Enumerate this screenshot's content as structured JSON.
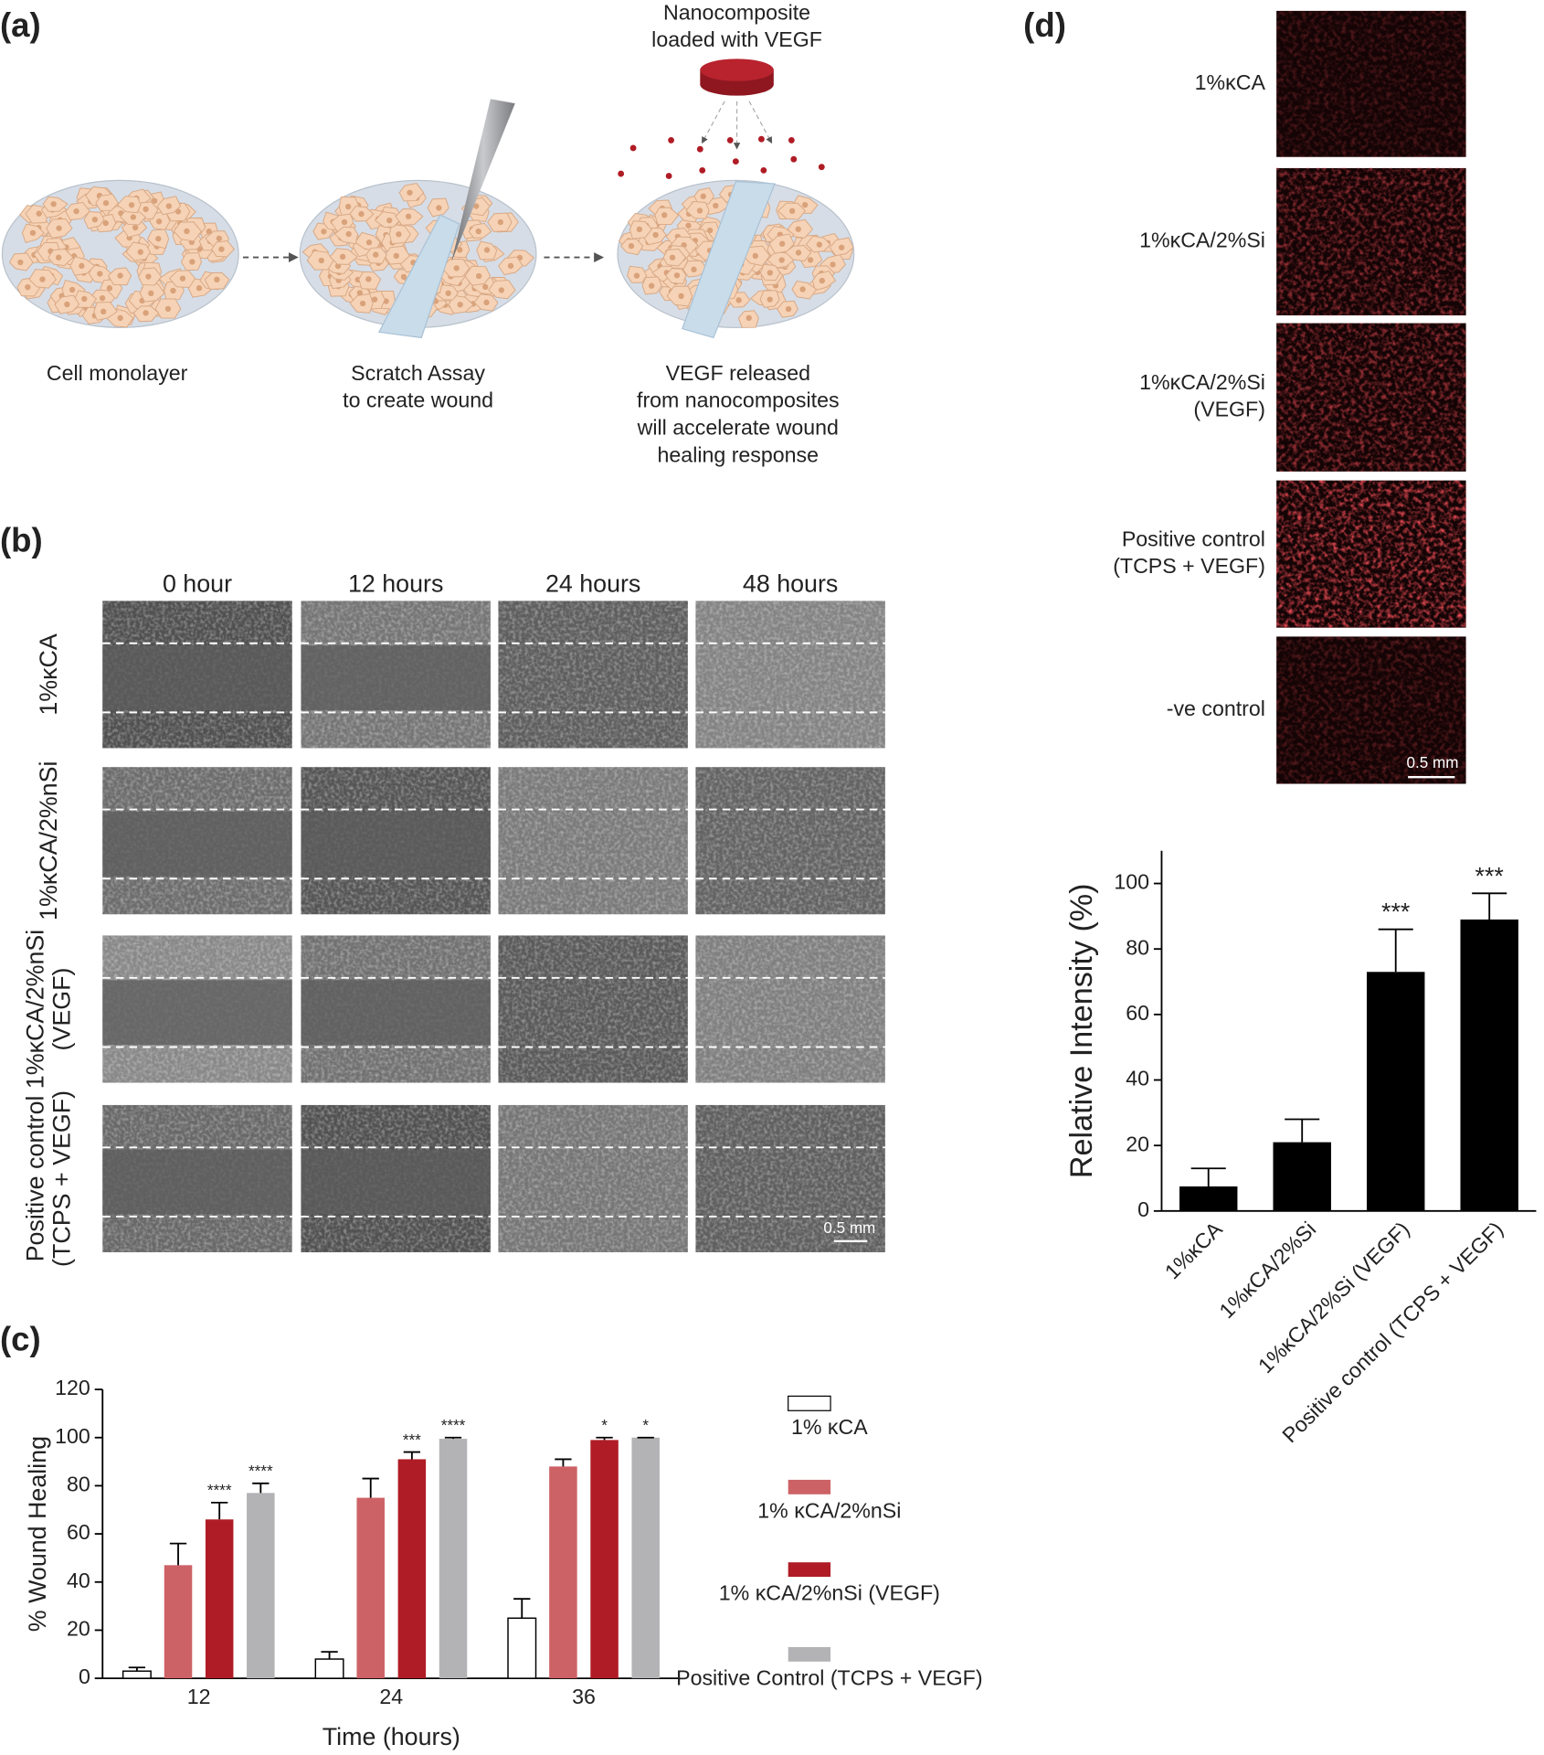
{
  "figure": {
    "panel_labels": [
      "(a)",
      "(b)",
      "(c)",
      "(d)"
    ],
    "a": {
      "top_label": [
        "Nanocomposite",
        "loaded with VEGF"
      ],
      "captions": [
        [
          "Cell monolayer"
        ],
        [
          "Scratch Assay",
          "to create wound"
        ],
        [
          "VEGF released",
          "from nanocomposites",
          "will accelerate wound",
          "healing response"
        ]
      ]
    },
    "b": {
      "columns": [
        "0 hour",
        "12 hours",
        "24 hours",
        "48 hours"
      ],
      "rows": [
        [
          "1%κCA"
        ],
        [
          "1%κCA/2%nSi"
        ],
        [
          "1%κCA/2%nSi",
          "(VEGF)"
        ],
        [
          "Positive control",
          "(TCPS + VEGF)"
        ]
      ],
      "scale_bar": "0.5 mm"
    },
    "d": {
      "rows": [
        [
          "1%κCA"
        ],
        [
          "1%κCA/2%Si"
        ],
        [
          "1%κCA/2%Si",
          "(VEGF)"
        ],
        [
          "Positive control",
          "(TCPS + VEGF)"
        ],
        [
          "-ve control"
        ]
      ],
      "scale_bar": "0.5 mm"
    }
  },
  "chart_data": [
    {
      "type": "bar",
      "xlabel": "Time (hours)",
      "ylabel": "% Wound Healing",
      "categories": [
        "12",
        "24",
        "36"
      ],
      "ylim": [
        0,
        120
      ],
      "yticks": [
        0,
        20,
        40,
        60,
        80,
        100,
        120
      ],
      "series": [
        {
          "name": "1% κCA",
          "color": "#ffffff",
          "edgecolor": "#000000",
          "values": [
            3,
            8,
            25
          ],
          "errors": [
            1.5,
            3,
            8
          ]
        },
        {
          "name": "1% κCA/2%nSi",
          "color": "#cd6266",
          "values": [
            47,
            75,
            88
          ],
          "errors": [
            9,
            8,
            3
          ]
        },
        {
          "name": "1% κCA/2%nSi (VEGF)",
          "color": "#b01c25",
          "values": [
            66,
            91,
            99
          ],
          "errors": [
            7,
            3,
            1
          ],
          "annotations": [
            "****",
            "***",
            "*"
          ]
        },
        {
          "name": "Positive Control (TCPS + VEGF)",
          "color": "#b3b3b5",
          "values": [
            77,
            99.5,
            100
          ],
          "errors": [
            4,
            0.5,
            0
          ],
          "annotations": [
            "****",
            "****",
            "*"
          ]
        }
      ]
    },
    {
      "type": "bar",
      "ylabel": "Relative Intensity (%)",
      "categories": [
        "1%κCA",
        "1%κCA/2%Si",
        "1%κCA/2%Si (VEGF)",
        "Positive control (TCPS + VEGF)"
      ],
      "values": [
        7.5,
        21,
        73,
        89
      ],
      "errors": [
        5.5,
        7,
        13,
        8
      ],
      "annotations": [
        null,
        null,
        "***",
        "***"
      ],
      "color": "#000000",
      "ylim": [
        0,
        110
      ],
      "yticks": [
        0,
        20,
        40,
        60,
        80,
        100
      ]
    }
  ]
}
